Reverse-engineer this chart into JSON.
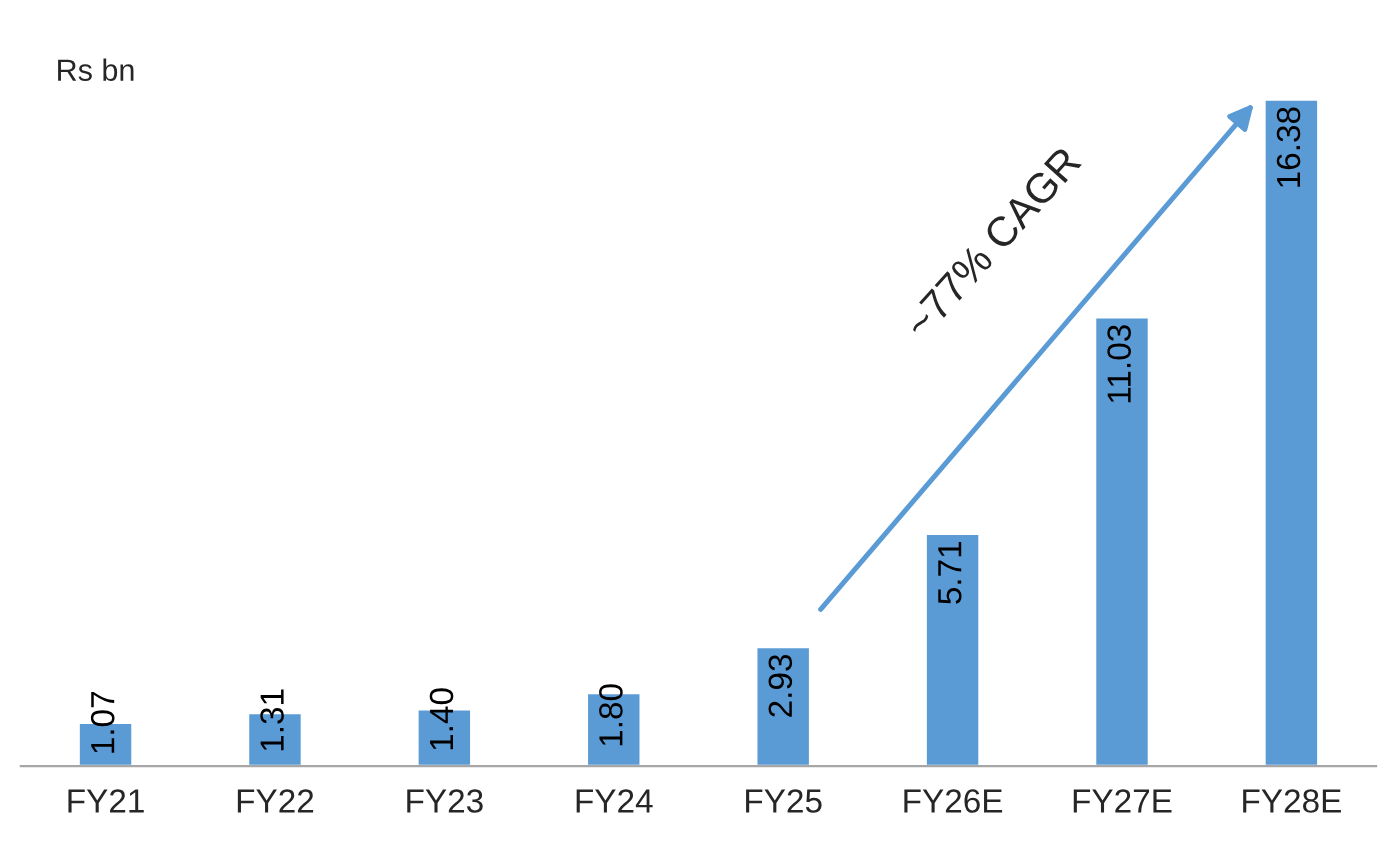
{
  "chart_data": {
    "type": "bar",
    "ylabel": "Rs bn",
    "categories": [
      "FY21",
      "FY22",
      "FY23",
      "FY24",
      "FY25",
      "FY26E",
      "FY27E",
      "FY28E"
    ],
    "values": [
      1.07,
      1.31,
      1.4,
      1.8,
      2.93,
      5.71,
      11.03,
      16.38
    ],
    "value_labels": [
      "1.07",
      "1.31",
      "1.40",
      "1.80",
      "2.93",
      "5.71",
      "11.03",
      "16.38"
    ],
    "color": "#5b9bd5",
    "annotations": [
      "~77% CAGR"
    ],
    "grid": false,
    "legend": false
  }
}
